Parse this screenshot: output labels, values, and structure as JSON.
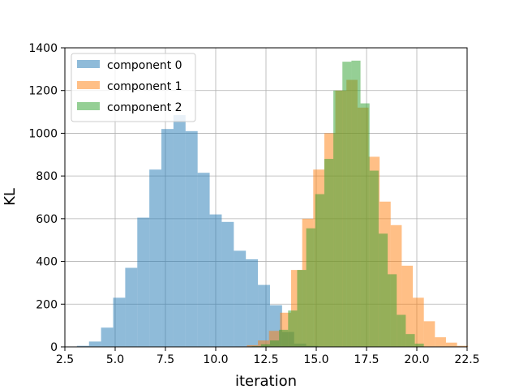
{
  "chart_data": {
    "type": "histogram",
    "title": "",
    "xlabel": "iteration",
    "ylabel": "KL",
    "xlim": [
      2.5,
      22.5
    ],
    "ylim": [
      0,
      1400
    ],
    "xticks": [
      "2.5",
      "5.0",
      "7.5",
      "10.0",
      "12.5",
      "15.0",
      "17.5",
      "20.0",
      "22.5"
    ],
    "yticks": [
      "0",
      "200",
      "400",
      "600",
      "800",
      "1000",
      "1200",
      "1400"
    ],
    "grid": true,
    "legend_position": "top-left",
    "alpha": 0.5,
    "series": [
      {
        "name": "component 0",
        "color": "#1f77b4",
        "bin_start": 3.1,
        "bin_width": 0.6,
        "counts": [
          5,
          25,
          90,
          230,
          370,
          605,
          830,
          1020,
          1085,
          1010,
          815,
          620,
          585,
          450,
          410,
          290,
          195,
          70,
          15,
          5
        ]
      },
      {
        "name": "component 1",
        "color": "#ff7f0e",
        "bin_start": 11.0,
        "bin_width": 0.55,
        "counts": [
          2,
          8,
          30,
          75,
          160,
          360,
          600,
          830,
          1000,
          1200,
          1250,
          1120,
          890,
          680,
          570,
          380,
          230,
          120,
          45,
          20,
          5
        ]
      },
      {
        "name": "component 2",
        "color": "#2ca02c",
        "bin_start": 11.8,
        "bin_width": 0.45,
        "counts": [
          3,
          12,
          30,
          80,
          170,
          360,
          555,
          715,
          880,
          1200,
          1335,
          1340,
          1140,
          825,
          530,
          340,
          150,
          60,
          15
        ]
      }
    ]
  }
}
